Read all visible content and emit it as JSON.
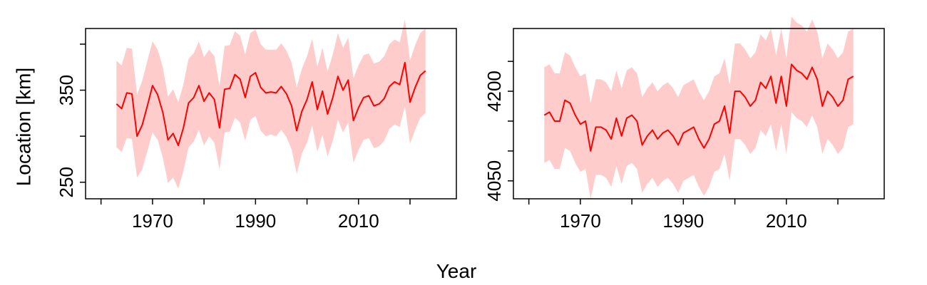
{
  "figure": {
    "ylabel": "Location [km]",
    "xlabel": "Year",
    "line_color": "#ff0000",
    "band_color": "#ffcccc"
  },
  "chart_data": [
    {
      "type": "line",
      "title": "",
      "xlabel": "Year",
      "ylabel": "Location [km]",
      "xlim": [
        1957,
        2029
      ],
      "ylim": [
        232,
        417
      ],
      "xticks": [
        1960,
        1970,
        1980,
        1990,
        2000,
        2010,
        2020
      ],
      "xtick_labels": [
        "1970",
        "1990",
        "2010"
      ],
      "yticks": [
        250,
        300,
        350,
        400
      ],
      "ytick_labels": [
        "250",
        "350"
      ],
      "grid": false,
      "x": [
        1963,
        1964,
        1965,
        1966,
        1967,
        1968,
        1969,
        1970,
        1971,
        1972,
        1973,
        1974,
        1975,
        1976,
        1977,
        1978,
        1979,
        1980,
        1981,
        1982,
        1983,
        1984,
        1985,
        1986,
        1987,
        1988,
        1989,
        1990,
        1991,
        1992,
        1993,
        1994,
        1995,
        1996,
        1997,
        1998,
        1999,
        2000,
        2001,
        2002,
        2003,
        2004,
        2005,
        2006,
        2007,
        2008,
        2009,
        2010,
        2011,
        2012,
        2013,
        2014,
        2015,
        2016,
        2017,
        2018,
        2019,
        2020,
        2021,
        2022,
        2023
      ],
      "series": [
        {
          "values": [
            335,
            330,
            347,
            346,
            300,
            312,
            333,
            355,
            345,
            326,
            296,
            303,
            290,
            309,
            336,
            342,
            355,
            338,
            347,
            340,
            309,
            351,
            352,
            367,
            362,
            342,
            365,
            369,
            353,
            347,
            348,
            347,
            354,
            346,
            333,
            306,
            327,
            340,
            359,
            329,
            349,
            324,
            342,
            365,
            350,
            361,
            317,
            331,
            342,
            344,
            333,
            335,
            341,
            354,
            359,
            356,
            380,
            337,
            353,
            366,
            371
          ],
          "lower": [
            288,
            283,
            298,
            297,
            255,
            264,
            284,
            304,
            296,
            277,
            249,
            255,
            243,
            262,
            288,
            294,
            307,
            290,
            300,
            293,
            264,
            304,
            305,
            320,
            315,
            295,
            318,
            322,
            306,
            300,
            302,
            300,
            307,
            299,
            286,
            259,
            281,
            293,
            312,
            283,
            302,
            278,
            295,
            318,
            304,
            315,
            271,
            285,
            296,
            298,
            287,
            289,
            295,
            308,
            313,
            310,
            333,
            292,
            307,
            320,
            325
          ],
          "upper": [
            382,
            377,
            396,
            395,
            345,
            360,
            382,
            403,
            394,
            375,
            343,
            351,
            337,
            356,
            384,
            390,
            403,
            386,
            394,
            387,
            354,
            398,
            399,
            414,
            409,
            389,
            412,
            416,
            400,
            394,
            394,
            394,
            401,
            393,
            380,
            353,
            373,
            387,
            406,
            375,
            396,
            370,
            389,
            412,
            396,
            407,
            363,
            377,
            388,
            390,
            379,
            381,
            387,
            400,
            405,
            402,
            427,
            382,
            399,
            412,
            417
          ]
        }
      ]
    },
    {
      "type": "line",
      "title": "",
      "xlabel": "Year",
      "ylabel": "",
      "xlim": [
        1957,
        2029
      ],
      "ylim": [
        4020,
        4305
      ],
      "xticks": [
        1960,
        1970,
        1980,
        1990,
        2000,
        2010,
        2020
      ],
      "xtick_labels": [
        "1970",
        "1990",
        "2010"
      ],
      "yticks": [
        4050,
        4100,
        4150,
        4200,
        4250
      ],
      "ytick_labels": [
        "4050",
        "4200"
      ],
      "grid": false,
      "x": [
        1963,
        1964,
        1965,
        1966,
        1967,
        1968,
        1969,
        1970,
        1971,
        1972,
        1973,
        1974,
        1975,
        1976,
        1977,
        1978,
        1979,
        1980,
        1981,
        1982,
        1983,
        1984,
        1985,
        1986,
        1987,
        1988,
        1989,
        1990,
        1991,
        1992,
        1993,
        1994,
        1995,
        1996,
        1997,
        1998,
        1999,
        2000,
        2001,
        2002,
        2003,
        2004,
        2005,
        2006,
        2007,
        2008,
        2009,
        2010,
        2011,
        2012,
        2013,
        2014,
        2015,
        2016,
        2017,
        2018,
        2019,
        2020,
        2021,
        2022,
        2023
      ],
      "series": [
        {
          "values": [
            4160,
            4165,
            4150,
            4150,
            4185,
            4180,
            4160,
            4145,
            4150,
            4100,
            4140,
            4140,
            4135,
            4120,
            4155,
            4125,
            4155,
            4160,
            4150,
            4110,
            4125,
            4135,
            4120,
            4130,
            4135,
            4125,
            4110,
            4130,
            4135,
            4140,
            4120,
            4105,
            4120,
            4145,
            4150,
            4175,
            4130,
            4200,
            4200,
            4190,
            4175,
            4185,
            4215,
            4205,
            4225,
            4180,
            4225,
            4175,
            4245,
            4235,
            4230,
            4220,
            4240,
            4220,
            4175,
            4200,
            4190,
            4175,
            4185,
            4220,
            4225
          ],
          "lower": [
            4080,
            4085,
            4070,
            4070,
            4105,
            4100,
            4080,
            4065,
            4070,
            4020,
            4060,
            4060,
            4055,
            4040,
            4075,
            4045,
            4075,
            4080,
            4070,
            4030,
            4045,
            4055,
            4040,
            4050,
            4055,
            4045,
            4030,
            4050,
            4055,
            4060,
            4040,
            4025,
            4040,
            4065,
            4070,
            4095,
            4050,
            4120,
            4120,
            4110,
            4095,
            4105,
            4135,
            4125,
            4145,
            4100,
            4145,
            4095,
            4165,
            4155,
            4150,
            4140,
            4160,
            4140,
            4095,
            4120,
            4110,
            4095,
            4105,
            4140,
            4145
          ],
          "upper": [
            4240,
            4245,
            4230,
            4230,
            4265,
            4260,
            4240,
            4225,
            4230,
            4180,
            4220,
            4220,
            4215,
            4200,
            4235,
            4205,
            4235,
            4240,
            4230,
            4190,
            4205,
            4215,
            4200,
            4210,
            4215,
            4205,
            4190,
            4210,
            4215,
            4220,
            4200,
            4185,
            4200,
            4225,
            4230,
            4255,
            4210,
            4280,
            4280,
            4270,
            4255,
            4265,
            4295,
            4285,
            4305,
            4260,
            4305,
            4255,
            4325,
            4315,
            4310,
            4300,
            4320,
            4300,
            4255,
            4280,
            4270,
            4255,
            4265,
            4300,
            4305
          ]
        }
      ]
    }
  ]
}
